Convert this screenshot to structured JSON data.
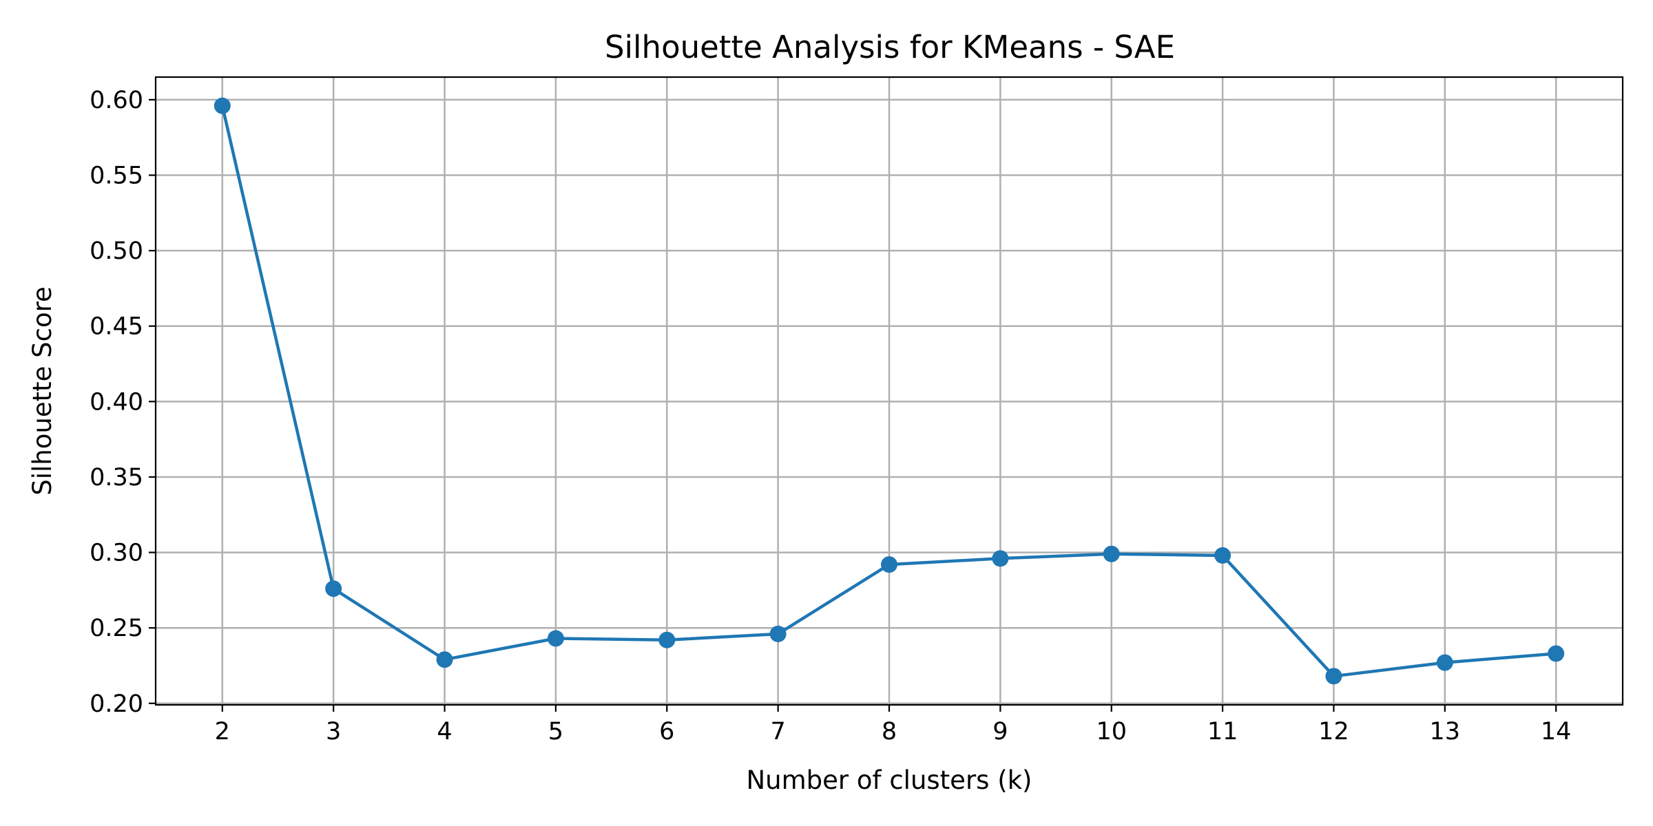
{
  "chart_data": {
    "type": "line",
    "title": "Silhouette Analysis for KMeans - SAE",
    "xlabel": "Number of clusters (k)",
    "ylabel": "Silhouette Score",
    "x": [
      2,
      3,
      4,
      5,
      6,
      7,
      8,
      9,
      10,
      11,
      12,
      13,
      14
    ],
    "xlim": [
      1.4,
      14.6
    ],
    "ylim": [
      0.199,
      0.615
    ],
    "xticks": [
      2,
      3,
      4,
      5,
      6,
      7,
      8,
      9,
      10,
      11,
      12,
      13,
      14
    ],
    "yticks": [
      0.2,
      0.25,
      0.3,
      0.35,
      0.4,
      0.45,
      0.5,
      0.55,
      0.6
    ],
    "ytick_labels": [
      "0.20",
      "0.25",
      "0.30",
      "0.35",
      "0.40",
      "0.45",
      "0.50",
      "0.55",
      "0.60"
    ],
    "grid": true,
    "series": [
      {
        "values": [
          0.596,
          0.276,
          0.229,
          0.243,
          0.242,
          0.246,
          0.292,
          0.296,
          0.299,
          0.298,
          0.218,
          0.227,
          0.233
        ],
        "color": "#1f77b4",
        "marker": "circle"
      }
    ]
  }
}
